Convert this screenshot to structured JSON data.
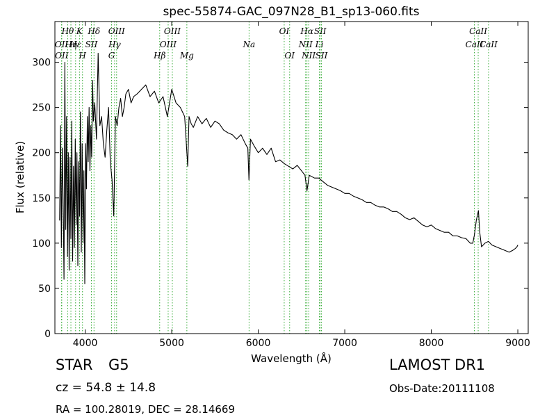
{
  "chart_data": {
    "type": "line",
    "title": "spec-55874-GAC_097N28_B1_sp13-060.fits",
    "xlabel": "Wavelength (Å)",
    "ylabel": "Flux (relative)",
    "xlim": [
      3650,
      9120
    ],
    "ylim": [
      0,
      345
    ],
    "xticks": [
      4000,
      5000,
      6000,
      7000,
      8000,
      9000
    ],
    "yticks": [
      0,
      50,
      100,
      150,
      200,
      250,
      300
    ],
    "grid": false,
    "line_color": "#000000",
    "marker_color": "#33aa33",
    "series": [
      {
        "x": [
          3705,
          3715,
          3725,
          3735,
          3745,
          3755,
          3765,
          3775,
          3785,
          3795,
          3805,
          3815,
          3825,
          3835,
          3845,
          3855,
          3865,
          3875,
          3885,
          3895,
          3905,
          3915,
          3925,
          3935,
          3945,
          3955,
          3965,
          3975,
          3985,
          3995,
          4005,
          4015,
          4025,
          4035,
          4045,
          4055,
          4065,
          4075,
          4085,
          4095,
          4110,
          4130,
          4150,
          4170,
          4190,
          4210,
          4230,
          4250,
          4270,
          4290,
          4310,
          4330,
          4350,
          4370,
          4390,
          4410,
          4430,
          4450,
          4470,
          4500,
          4530,
          4560,
          4600,
          4650,
          4700,
          4750,
          4800,
          4850,
          4900,
          4950,
          5000,
          5050,
          5100,
          5150,
          5175,
          5185,
          5200,
          5225,
          5250,
          5300,
          5350,
          5400,
          5450,
          5500,
          5550,
          5600,
          5650,
          5700,
          5750,
          5800,
          5850,
          5880,
          5893,
          5910,
          5950,
          6000,
          6050,
          6100,
          6150,
          6200,
          6250,
          6300,
          6350,
          6400,
          6450,
          6500,
          6540,
          6563,
          6590,
          6650,
          6700,
          6750,
          6800,
          6850,
          6900,
          6950,
          7000,
          7050,
          7100,
          7150,
          7200,
          7250,
          7300,
          7350,
          7400,
          7450,
          7500,
          7550,
          7600,
          7650,
          7700,
          7750,
          7800,
          7850,
          7900,
          7950,
          8000,
          8050,
          8100,
          8150,
          8200,
          8250,
          8300,
          8350,
          8400,
          8450,
          8480,
          8500,
          8520,
          8545,
          8560,
          8580,
          8620,
          8660,
          8700,
          8750,
          8800,
          8850,
          8900,
          8940,
          8970,
          8990,
          9000
        ],
        "values": [
          125,
          230,
          95,
          205,
          150,
          60,
          300,
          115,
          240,
          85,
          200,
          70,
          195,
          105,
          235,
          80,
          185,
          95,
          215,
          120,
          200,
          75,
          190,
          130,
          245,
          90,
          210,
          100,
          180,
          55,
          210,
          160,
          240,
          190,
          250,
          180,
          230,
          195,
          280,
          235,
          255,
          215,
          310,
          230,
          240,
          210,
          195,
          225,
          250,
          190,
          170,
          130,
          240,
          230,
          250,
          260,
          240,
          250,
          265,
          270,
          255,
          262,
          265,
          270,
          275,
          262,
          268,
          255,
          262,
          240,
          270,
          255,
          250,
          240,
          200,
          185,
          240,
          232,
          228,
          240,
          232,
          238,
          228,
          235,
          232,
          225,
          222,
          220,
          215,
          220,
          210,
          205,
          170,
          215,
          208,
          200,
          205,
          198,
          205,
          190,
          192,
          188,
          185,
          182,
          186,
          180,
          175,
          158,
          175,
          172,
          172,
          168,
          164,
          162,
          160,
          158,
          155,
          155,
          152,
          150,
          148,
          145,
          145,
          142,
          140,
          140,
          138,
          135,
          135,
          132,
          128,
          126,
          128,
          124,
          120,
          118,
          120,
          116,
          114,
          112,
          112,
          108,
          108,
          106,
          105,
          100,
          100,
          110,
          125,
          136,
          112,
          96,
          100,
          102,
          98,
          96,
          94,
          92,
          90,
          92,
          94,
          96,
          98
        ]
      }
    ],
    "line_markers": [
      {
        "label": "OII",
        "x": 3727,
        "row": 2
      },
      {
        "label": "OII",
        "x": 3729,
        "row": 4
      },
      {
        "label": "Hθ",
        "x": 3798,
        "row": 1
      },
      {
        "label": "Hη",
        "x": 3835,
        "row": 3
      },
      {
        "label": "Hε",
        "x": 3889,
        "row": 2
      },
      {
        "label": "K",
        "x": 3934,
        "row": 1
      },
      {
        "label": "H",
        "x": 3969,
        "row": 4
      },
      {
        "label": "SII",
        "x": 4072,
        "row": 2
      },
      {
        "label": "Hδ",
        "x": 4102,
        "row": 1
      },
      {
        "label": "G",
        "x": 4305,
        "row": 4
      },
      {
        "label": "Hγ",
        "x": 4340,
        "row": 3
      },
      {
        "label": "OIII",
        "x": 4363,
        "row": 1
      },
      {
        "label": "Hβ",
        "x": 4861,
        "row": 4
      },
      {
        "label": "OIII",
        "x": 4959,
        "row": 3
      },
      {
        "label": "OIII",
        "x": 5007,
        "row": 1
      },
      {
        "label": "Mg",
        "x": 5175,
        "row": 4
      },
      {
        "label": "Na",
        "x": 5894,
        "row": 3
      },
      {
        "label": "OI",
        "x": 6300,
        "row": 1
      },
      {
        "label": "OI",
        "x": 6363,
        "row": 4
      },
      {
        "label": "NII",
        "x": 6548,
        "row": 3
      },
      {
        "label": "Hα",
        "x": 6563,
        "row": 1
      },
      {
        "label": "NII",
        "x": 6583,
        "row": 4
      },
      {
        "label": "Li",
        "x": 6707,
        "row": 3
      },
      {
        "label": "SII",
        "x": 6716,
        "row": 1
      },
      {
        "label": "SII",
        "x": 6731,
        "row": 4
      },
      {
        "label": "CaII",
        "x": 8498,
        "row": 2
      },
      {
        "label": "CaII",
        "x": 8542,
        "row": 1
      },
      {
        "label": "CaII",
        "x": 8662,
        "row": 3
      }
    ]
  },
  "info": {
    "object_type": "STAR",
    "subclass": "G5",
    "survey": "LAMOST DR1",
    "redshift": "cz = 54.8 ± 14.8",
    "obs_date": "Obs-Date:20111108",
    "coords": "RA = 100.28019, DEC = 28.14669"
  }
}
